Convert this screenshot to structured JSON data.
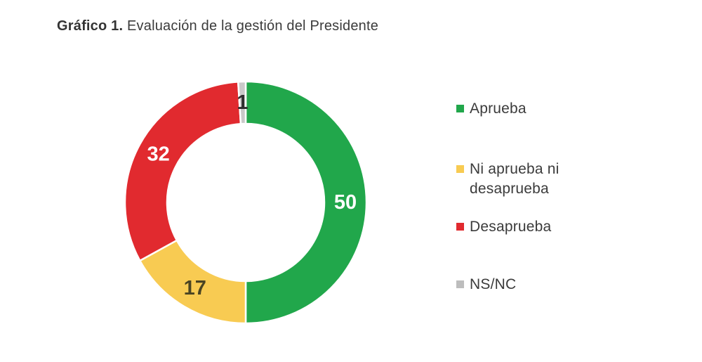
{
  "title": {
    "prefix": "Gráfico 1.",
    "text": " Evaluación de la gestión del Presidente"
  },
  "chart_data": {
    "type": "pie",
    "subtype": "donut",
    "title": "Evaluación de la gestión del Presidente",
    "total": 100,
    "start_angle_deg": 0,
    "direction": "clockwise",
    "legend_position": "right",
    "separator_color": "#ffffff",
    "segments": [
      {
        "label": "Aprueba",
        "value": 50,
        "color": "#21A74B",
        "label_color": "#ffffff"
      },
      {
        "label": "Ni aprueba ni desaprueba",
        "value": 17,
        "color": "#F8CB52",
        "label_color": "#4a4423"
      },
      {
        "label": "Desaprueba",
        "value": 32,
        "color": "#E12A2F",
        "label_color": "#ffffff"
      },
      {
        "label": "NS/NC",
        "value": 1,
        "color": "#C9C9C9",
        "label_color": "#2f2f2f"
      }
    ]
  },
  "legend": {
    "items": [
      {
        "label": "Aprueba",
        "color": "#21A74B"
      },
      {
        "label": "Ni aprueba ni desaprueba",
        "color": "#F8CB52"
      },
      {
        "label": "Desaprueba",
        "color": "#E12A2F"
      },
      {
        "label": "NS/NC",
        "color": "#BDBDBD"
      }
    ]
  }
}
